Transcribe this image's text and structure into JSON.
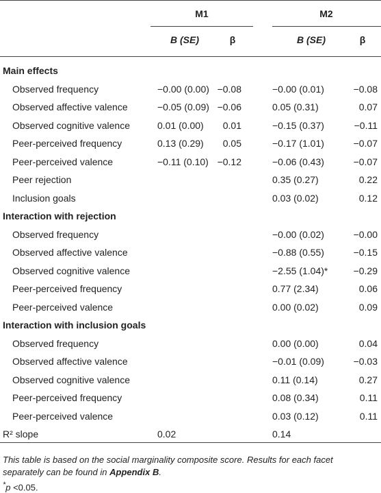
{
  "table": {
    "groups": [
      "M1",
      "M2"
    ],
    "columns": [
      "B (SE)",
      "β",
      "B (SE)",
      "β"
    ],
    "sections": [
      {
        "title": "Main effects",
        "rows": [
          {
            "label": "Observed frequency",
            "cells": [
              "−0.00 (0.00)",
              "−0.08",
              "−0.00 (0.01)",
              "−0.08"
            ]
          },
          {
            "label": "Observed affective valence",
            "cells": [
              "−0.05 (0.09)",
              "−0.06",
              "0.05 (0.31)",
              "0.07"
            ]
          },
          {
            "label": "Observed cognitive valence",
            "cells": [
              "0.01 (0.00)",
              "0.01",
              "−0.15 (0.37)",
              "−0.11"
            ]
          },
          {
            "label": "Peer-perceived frequency",
            "cells": [
              "0.13 (0.29)",
              "0.05",
              "−0.17 (1.01)",
              "−0.07"
            ]
          },
          {
            "label": "Peer-perceived valence",
            "cells": [
              "−0.11 (0.10)",
              "−0.12",
              "−0.06 (0.43)",
              "−0.07"
            ]
          },
          {
            "label": "Peer rejection",
            "cells": [
              null,
              null,
              "0.35 (0.27)",
              "0.22"
            ]
          },
          {
            "label": "Inclusion goals",
            "cells": [
              null,
              null,
              "0.03 (0.02)",
              "0.12"
            ]
          }
        ]
      },
      {
        "title": "Interaction with rejection",
        "rows": [
          {
            "label": "Observed frequency",
            "cells": [
              null,
              null,
              "−0.00 (0.02)",
              "−0.00"
            ]
          },
          {
            "label": "Observed affective valence",
            "cells": [
              null,
              null,
              "−0.88 (0.55)",
              "−0.15"
            ]
          },
          {
            "label": "Observed cognitive valence",
            "cells": [
              null,
              null,
              "−2.55 (1.04)*",
              "−0.29"
            ]
          },
          {
            "label": "Peer-perceived frequency",
            "cells": [
              null,
              null,
              "0.77 (2.34)",
              "0.06"
            ]
          },
          {
            "label": "Peer-perceived valence",
            "cells": [
              null,
              null,
              "0.00 (0.02)",
              "0.09"
            ]
          }
        ]
      },
      {
        "title": "Interaction with inclusion goals",
        "rows": [
          {
            "label": "Observed frequency",
            "cells": [
              null,
              null,
              "0.00 (0.00)",
              "0.04"
            ]
          },
          {
            "label": "Observed affective valence",
            "cells": [
              null,
              null,
              "−0.01 (0.09)",
              "−0.03"
            ]
          },
          {
            "label": "Observed cognitive valence",
            "cells": [
              null,
              null,
              "0.11 (0.14)",
              "0.27"
            ]
          },
          {
            "label": "Peer-perceived frequency",
            "cells": [
              null,
              null,
              "0.08 (0.34)",
              "0.11"
            ]
          },
          {
            "label": "Peer-perceived valence",
            "cells": [
              null,
              null,
              "0.03 (0.12)",
              "0.11"
            ]
          }
        ]
      }
    ],
    "summary": {
      "label": "R² slope",
      "cells": [
        "0.02",
        null,
        "0.14",
        null
      ]
    },
    "note": {
      "text": "This table is based on the social marginality composite score. Results for each facet separately can be found in ",
      "link": "Appendix B",
      "end": "."
    },
    "significance": {
      "mark": "*",
      "symbol": "p",
      "text": " <0.05."
    }
  }
}
